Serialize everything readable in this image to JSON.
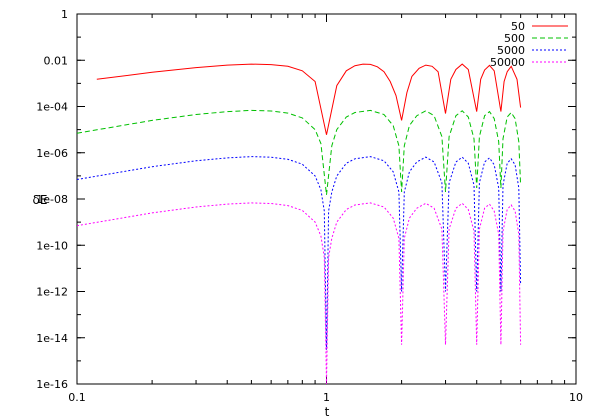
{
  "chart_data": {
    "type": "line",
    "xlabel": "t",
    "ylabel": "δE",
    "xscale": "log",
    "yscale": "log",
    "xlim": [
      0.1,
      10
    ],
    "ylim": [
      1e-16,
      1
    ],
    "grid": false,
    "legend_position": "top-right",
    "x_ticks": [
      {
        "value": 0.1,
        "label": "0.1"
      },
      {
        "value": 1,
        "label": "1"
      },
      {
        "value": 10,
        "label": "10"
      }
    ],
    "y_ticks": [
      {
        "value": 1,
        "label": "1"
      },
      {
        "value": 0.01,
        "label": "0.01"
      },
      {
        "value": 0.0001,
        "label": "1e-04"
      },
      {
        "value": 1e-06,
        "label": "1e-06"
      },
      {
        "value": 1e-08,
        "label": "1e-08"
      },
      {
        "value": 1e-10,
        "label": "1e-10"
      },
      {
        "value": 1e-12,
        "label": "1e-12"
      },
      {
        "value": 1e-14,
        "label": "1e-14"
      },
      {
        "value": 1e-16,
        "label": "1e-16"
      }
    ],
    "series": [
      {
        "name": "50",
        "color": "#ff0000",
        "dash": "solid",
        "x": [
          0.12,
          0.2,
          0.3,
          0.4,
          0.5,
          0.6,
          0.7,
          0.8,
          0.9,
          1.0,
          1.1,
          1.2,
          1.3,
          1.4,
          1.5,
          1.6,
          1.7,
          1.8,
          1.9,
          2.0,
          2.1,
          2.2,
          2.35,
          2.5,
          2.65,
          2.8,
          3.0,
          3.15,
          3.3,
          3.5,
          3.7,
          4.0,
          4.15,
          4.3,
          4.5,
          4.7,
          5.0,
          5.15,
          5.3,
          5.5,
          5.8,
          6.0
        ],
        "y": [
          0.0015,
          0.003,
          0.0048,
          0.0062,
          0.0068,
          0.0065,
          0.0055,
          0.0035,
          0.0012,
          6e-06,
          0.0008,
          0.0035,
          0.0058,
          0.0068,
          0.0066,
          0.0052,
          0.0032,
          0.0012,
          0.0003,
          2.5e-05,
          0.0004,
          0.002,
          0.0045,
          0.0062,
          0.0055,
          0.0032,
          5e-05,
          0.0015,
          0.004,
          0.0068,
          0.004,
          6e-05,
          0.0015,
          0.0038,
          0.006,
          0.0035,
          6e-05,
          0.0012,
          0.0032,
          0.0055,
          0.0015,
          9e-05
        ]
      },
      {
        "name": "500",
        "color": "#00c000",
        "dash": "dashed",
        "x": [
          0.1,
          0.2,
          0.3,
          0.4,
          0.5,
          0.6,
          0.7,
          0.8,
          0.9,
          0.95,
          1.0,
          1.05,
          1.1,
          1.2,
          1.3,
          1.5,
          1.7,
          1.85,
          1.95,
          2.0,
          2.05,
          2.15,
          2.3,
          2.5,
          2.7,
          2.9,
          3.0,
          3.1,
          3.3,
          3.5,
          3.7,
          3.9,
          4.0,
          4.1,
          4.3,
          4.5,
          4.7,
          4.9,
          5.0,
          5.1,
          5.3,
          5.5,
          5.7,
          5.9,
          6.0
        ],
        "y": [
          7e-06,
          2.5e-05,
          4.5e-05,
          6e-05,
          6.8e-05,
          6.4e-05,
          5.2e-05,
          3.2e-05,
          1e-05,
          2.5e-06,
          1.5e-08,
          2e-06,
          1e-05,
          3.5e-05,
          5.5e-05,
          6.8e-05,
          4.5e-05,
          1.5e-05,
          2e-06,
          2e-08,
          2e-06,
          1.5e-05,
          4e-05,
          6.5e-05,
          4e-05,
          5e-06,
          2e-08,
          5e-06,
          4e-05,
          6.5e-05,
          3.5e-05,
          4e-06,
          3e-08,
          5e-06,
          4e-05,
          6e-05,
          3e-05,
          3e-06,
          3e-08,
          4e-06,
          3.5e-05,
          5.5e-05,
          3e-05,
          3e-06,
          4e-08
        ]
      },
      {
        "name": "5000",
        "color": "#0000ff",
        "dash": "dotted",
        "x": [
          0.1,
          0.2,
          0.3,
          0.4,
          0.5,
          0.6,
          0.7,
          0.8,
          0.9,
          0.95,
          0.98,
          1.0,
          1.02,
          1.05,
          1.1,
          1.2,
          1.3,
          1.5,
          1.7,
          1.85,
          1.95,
          2.0,
          2.05,
          2.15,
          2.3,
          2.5,
          2.7,
          2.9,
          3.0,
          3.1,
          3.3,
          3.5,
          3.7,
          3.9,
          4.0,
          4.1,
          4.3,
          4.5,
          4.7,
          4.9,
          5.0,
          5.1,
          5.3,
          5.5,
          5.7,
          5.9,
          6.0
        ],
        "y": [
          7e-08,
          2.5e-07,
          4.5e-07,
          6e-07,
          6.8e-07,
          6.4e-07,
          5.2e-07,
          3.2e-07,
          1e-07,
          2.5e-08,
          3e-09,
          3e-15,
          3e-09,
          2e-08,
          1e-07,
          3.5e-07,
          5.5e-07,
          6.8e-07,
          4.5e-07,
          1.5e-07,
          2e-08,
          1e-12,
          2e-08,
          1.5e-07,
          4e-07,
          6.5e-07,
          4e-07,
          5e-08,
          1e-12,
          5e-08,
          4e-07,
          6.5e-07,
          3.5e-07,
          4e-08,
          1e-12,
          5e-08,
          4e-07,
          6e-07,
          3e-07,
          3e-08,
          1e-12,
          4e-08,
          3.5e-07,
          5.5e-07,
          3e-07,
          3e-08,
          2e-12
        ]
      },
      {
        "name": "50000",
        "color": "#ff00ff",
        "dash": "dotted",
        "x": [
          0.1,
          0.2,
          0.3,
          0.4,
          0.5,
          0.6,
          0.7,
          0.8,
          0.9,
          0.95,
          0.98,
          1.0,
          1.02,
          1.05,
          1.1,
          1.2,
          1.3,
          1.5,
          1.7,
          1.85,
          1.95,
          2.0,
          2.05,
          2.15,
          2.3,
          2.5,
          2.7,
          2.9,
          3.0,
          3.1,
          3.3,
          3.5,
          3.7,
          3.9,
          4.0,
          4.1,
          4.3,
          4.5,
          4.7,
          4.9,
          5.0,
          5.1,
          5.3,
          5.5,
          5.7,
          5.9,
          6.0
        ],
        "y": [
          7e-10,
          2.5e-09,
          4.5e-09,
          6e-09,
          6.8e-09,
          6.4e-09,
          5.2e-09,
          3.2e-09,
          1e-09,
          2.5e-10,
          3e-11,
          1e-16,
          3e-11,
          2e-10,
          1e-09,
          3.5e-09,
          5.5e-09,
          6.8e-09,
          4.5e-09,
          1.5e-09,
          2e-10,
          5e-15,
          2e-10,
          1.5e-09,
          4e-09,
          6.5e-09,
          4e-09,
          5e-10,
          5e-15,
          5e-10,
          4e-09,
          6.5e-09,
          3.5e-09,
          4e-10,
          5e-15,
          5e-10,
          4e-09,
          6e-09,
          3e-09,
          3e-10,
          5e-15,
          4e-10,
          3.5e-09,
          5.5e-09,
          3e-09,
          3e-10,
          5e-15
        ]
      }
    ]
  }
}
